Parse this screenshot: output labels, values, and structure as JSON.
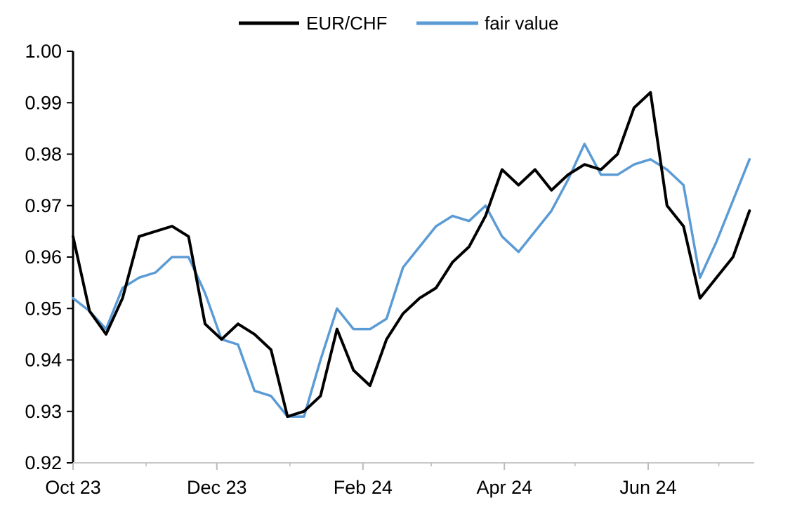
{
  "chart_data": {
    "type": "line",
    "title": "",
    "xlabel": "",
    "ylabel": "",
    "ylim": [
      0.92,
      1.0
    ],
    "yticks": [
      "0.92",
      "0.93",
      "0.94",
      "0.95",
      "0.96",
      "0.97",
      "0.98",
      "0.99",
      "1.00"
    ],
    "xticks": [
      "Oct 23",
      "Dec 23",
      "Feb 24",
      "Apr 24",
      "Jun 24"
    ],
    "grid": false,
    "legend": "top-center",
    "x_dates": [
      "2023-10-01",
      "2023-10-08",
      "2023-10-15",
      "2023-10-22",
      "2023-10-29",
      "2023-11-05",
      "2023-11-12",
      "2023-11-19",
      "2023-11-26",
      "2023-12-03",
      "2023-12-10",
      "2023-12-17",
      "2023-12-24",
      "2023-12-31",
      "2024-01-07",
      "2024-01-14",
      "2024-01-21",
      "2024-01-28",
      "2024-02-04",
      "2024-02-11",
      "2024-02-18",
      "2024-02-25",
      "2024-03-03",
      "2024-03-10",
      "2024-03-17",
      "2024-03-24",
      "2024-03-31",
      "2024-04-07",
      "2024-04-14",
      "2024-04-21",
      "2024-04-28",
      "2024-05-05",
      "2024-05-12",
      "2024-05-19",
      "2024-05-26",
      "2024-06-02",
      "2024-06-09",
      "2024-06-16",
      "2024-06-23",
      "2024-06-30",
      "2024-07-07",
      "2024-07-14"
    ],
    "series": [
      {
        "name": "EUR/CHF",
        "color": "#000000",
        "values": [
          0.964,
          0.9495,
          0.945,
          0.952,
          0.964,
          0.965,
          0.966,
          0.964,
          0.947,
          0.944,
          0.947,
          0.945,
          0.942,
          0.929,
          0.93,
          0.933,
          0.946,
          0.938,
          0.935,
          0.944,
          0.949,
          0.952,
          0.954,
          0.959,
          0.962,
          0.968,
          0.977,
          0.974,
          0.977,
          0.973,
          0.976,
          0.978,
          0.977,
          0.98,
          0.989,
          0.992,
          0.97,
          0.966,
          0.952,
          0.956,
          0.96,
          0.969
        ]
      },
      {
        "name": "fair value",
        "color": "#5B9BD5",
        "values": [
          0.952,
          0.9495,
          0.946,
          0.954,
          0.956,
          0.957,
          0.96,
          0.96,
          0.953,
          0.944,
          0.943,
          0.934,
          0.933,
          0.929,
          0.929,
          0.94,
          0.95,
          0.946,
          0.946,
          0.948,
          0.958,
          0.962,
          0.966,
          0.968,
          0.967,
          0.97,
          0.964,
          0.961,
          0.965,
          0.969,
          0.975,
          0.982,
          0.976,
          0.976,
          0.978,
          0.979,
          0.977,
          0.974,
          0.956,
          0.963,
          0.971,
          0.979
        ]
      }
    ]
  }
}
